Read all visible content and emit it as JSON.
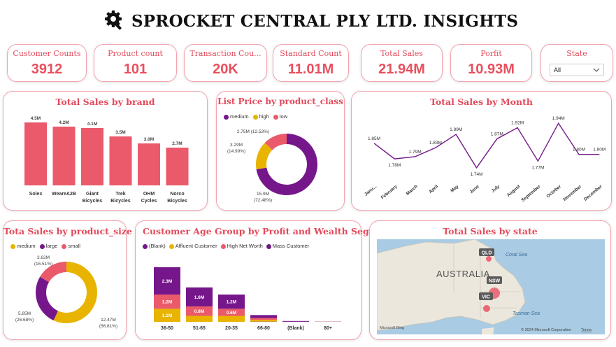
{
  "header": {
    "title": "SPROCKET CENTRAL PLY LTD. INSIGHTS",
    "icon": "gear-wrench-icon"
  },
  "kpis": [
    {
      "label": "Customer Counts",
      "value": "3912"
    },
    {
      "label": "Product count",
      "value": "101"
    },
    {
      "label": "Transaction Cou...",
      "value": "20K"
    },
    {
      "label": "Standard Count",
      "value": "11.01M"
    },
    {
      "label": "Total Sales",
      "value": "21.94M"
    },
    {
      "label": "Porfit",
      "value": "10.93M"
    }
  ],
  "state_filter": {
    "label": "State",
    "selected": "All"
  },
  "colors": {
    "accent": "#e8505f",
    "purple": "#75178a",
    "gold": "#e8b400",
    "pink": "#ea5a6a"
  },
  "brand_chart": {
    "title": "Total Sales by brand",
    "chart_data": {
      "type": "bar",
      "categories": [
        "Solex",
        "WeareA2B",
        "Giant Bicycles",
        "Trek Bicycles",
        "OHM Cycles",
        "Norco Bicycles"
      ],
      "values": [
        4.5,
        4.2,
        4.1,
        3.5,
        3.0,
        2.7
      ],
      "data_labels": [
        "4.5M",
        "4.2M",
        "4.1M",
        "3.5M",
        "3.0M",
        "2.7M"
      ]
    }
  },
  "class_chart": {
    "title": "List Price by product_class",
    "legend": [
      "medium",
      "high",
      "low"
    ],
    "chart_data": {
      "type": "pie",
      "categories": [
        "medium",
        "high",
        "low"
      ],
      "values": [
        15.9,
        3.29,
        2.75
      ],
      "percents": [
        72.48,
        14.99,
        12.53
      ],
      "labels": [
        [
          "15.9M",
          "(72.48%)"
        ],
        [
          "3.29M",
          "(14.99%)"
        ],
        [
          "2.75M (12.53%)"
        ]
      ]
    }
  },
  "month_chart": {
    "title": "Total Sales by Month",
    "chart_data": {
      "type": "line",
      "categories": [
        "Janu...",
        "February",
        "March",
        "April",
        "May",
        "June",
        "July",
        "August",
        "September",
        "October",
        "November",
        "December"
      ],
      "values": [
        1.85,
        1.78,
        1.79,
        1.83,
        1.89,
        1.74,
        1.87,
        1.92,
        1.77,
        1.94,
        1.8,
        1.8
      ],
      "data_labels": [
        "1.85M",
        "1.78M",
        "1.79M",
        "1.83M",
        "1.89M",
        "1.74M",
        "1.87M",
        "1.92M",
        "1.77M",
        "1.94M",
        "1.80M",
        "1.80M"
      ]
    }
  },
  "size_chart": {
    "title": "Tota Sales by product_size",
    "legend": [
      "medium",
      "large",
      "small"
    ],
    "chart_data": {
      "type": "pie",
      "categories": [
        "medium",
        "large",
        "small"
      ],
      "values": [
        12.47,
        5.85,
        3.62
      ],
      "percents": [
        56.81,
        26.68,
        16.51
      ],
      "labels": [
        [
          "12.47M",
          "(56.81%)"
        ],
        [
          "5.85M",
          "(26.68%)"
        ],
        [
          "3.62M",
          "(16.51%)"
        ]
      ]
    }
  },
  "age_chart": {
    "title": "Customer Age Group by Profit and Wealth Segme...",
    "legend": [
      "(Blank)",
      "Affluent Customer",
      "High Net Worth",
      "Mass Customer"
    ],
    "chart_data": {
      "type": "bar",
      "stacked": true,
      "categories": [
        "36-50",
        "51-65",
        "20-35",
        "66-80",
        "(Blank)",
        "80+"
      ],
      "series": [
        {
          "name": "(Blank)",
          "values": [
            0,
            0,
            0,
            0.02,
            0.02,
            0
          ]
        },
        {
          "name": "Affluent Customer",
          "values": [
            1.1,
            0.5,
            0.5,
            0.15,
            0,
            0.01
          ]
        },
        {
          "name": "High Net Worth",
          "values": [
            1.2,
            0.8,
            0.6,
            0.15,
            0,
            0.01
          ]
        },
        {
          "name": "Mass Customer",
          "values": [
            2.3,
            1.6,
            1.2,
            0.25,
            0.05,
            0.01
          ]
        }
      ],
      "data_labels": [
        [
          "",
          "1.1M",
          "1.2M",
          "2.3M"
        ],
        [
          "",
          "",
          "0.8M",
          "1.6M"
        ],
        [
          "",
          "",
          "0.6M",
          "1.2M"
        ],
        [
          "",
          "",
          "",
          ""
        ],
        [
          "",
          "",
          "",
          ""
        ],
        [
          "",
          "",
          "",
          ""
        ]
      ]
    }
  },
  "state_chart": {
    "title": "Total Sales by state",
    "map_label": "AUSTRALIA",
    "sea_labels": [
      "Coral Sea",
      "Tasman Sea"
    ],
    "states": [
      "QLD",
      "NSW",
      "VIC"
    ],
    "attribution": "© 2024 Microsoft Corporation",
    "terms": "Terms",
    "bing": "Microsoft Bing"
  }
}
